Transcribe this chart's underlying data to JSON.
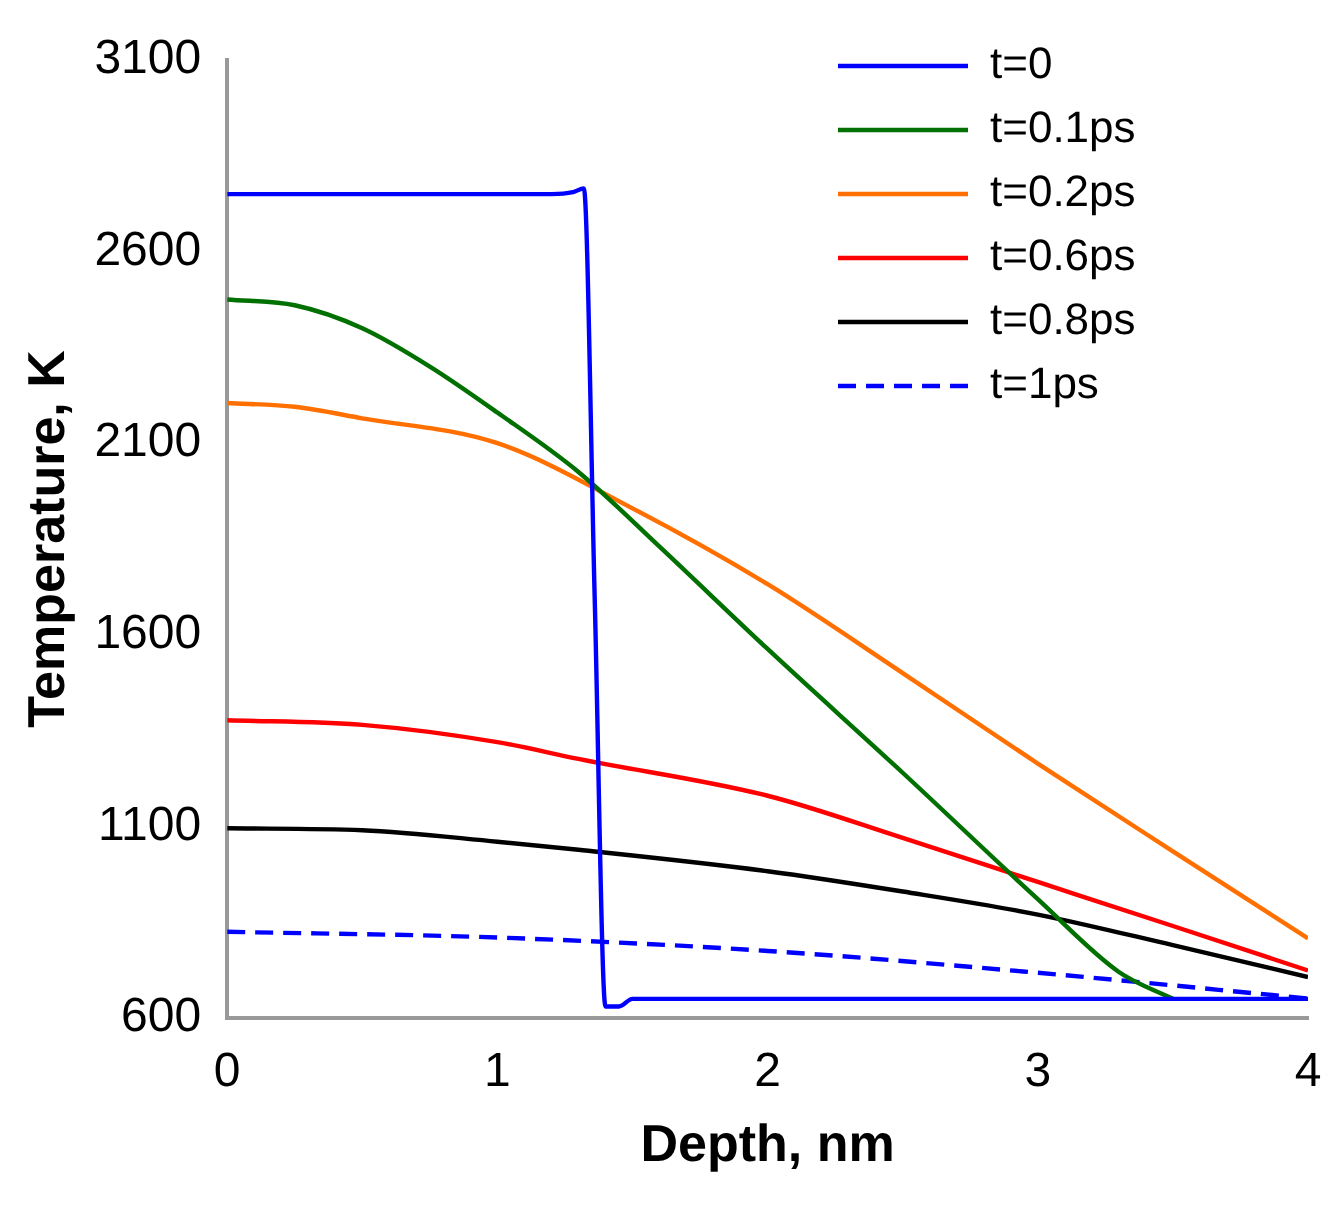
{
  "chart_data": {
    "type": "line",
    "xlabel": "Depth, nm",
    "ylabel": "Temperature, K",
    "xlim": [
      0,
      4
    ],
    "xticks": [
      0,
      1,
      2,
      3,
      4
    ],
    "ylim": [
      600,
      3100
    ],
    "yticks": [
      600,
      1100,
      1600,
      2100,
      2600,
      3100
    ],
    "grid": false,
    "legend": "top right",
    "marker": "none",
    "series": [
      {
        "name": "t=0",
        "color": "#0000ff",
        "x": [
          0,
          0.5,
          1,
          1.2,
          1.28,
          1.32,
          1.36,
          1.4,
          1.45,
          1.5,
          2,
          3,
          4
        ],
        "values": [
          2750,
          2750,
          2750,
          2750,
          2755,
          2765,
          1700,
          630,
          630,
          650,
          650,
          650,
          650
        ]
      },
      {
        "name": "t=0.1ps",
        "color": "#007000",
        "x": [
          0,
          0.25,
          0.5,
          0.75,
          1,
          1.3,
          1.6,
          2,
          2.5,
          3,
          3.3,
          3.5
        ],
        "values": [
          2475,
          2460,
          2400,
          2300,
          2180,
          2025,
          1830,
          1563,
          1240,
          910,
          720,
          650
        ]
      },
      {
        "name": "t=0.2ps",
        "color": "#ff7000",
        "x": [
          0,
          0.25,
          0.5,
          1,
          1.5,
          2,
          2.5,
          3,
          3.5,
          4
        ],
        "values": [
          2205,
          2195,
          2165,
          2100,
          1930,
          1732,
          1500,
          1264,
          1035,
          808
        ]
      },
      {
        "name": "t=0.6ps",
        "color": "#ff0000",
        "x": [
          0,
          0.5,
          1,
          1.3,
          2,
          2.5,
          3,
          3.5,
          4
        ],
        "values": [
          1377,
          1365,
          1320,
          1276,
          1180,
          1070,
          955,
          840,
          724
        ]
      },
      {
        "name": "t=0.8ps",
        "color": "#000000",
        "x": [
          0,
          0.5,
          1,
          1.3,
          2,
          2.5,
          3,
          3.5,
          4
        ],
        "values": [
          1095,
          1090,
          1060,
          1039,
          983,
          930,
          870,
          790,
          707
        ]
      },
      {
        "name": "t=1ps",
        "color": "#0000ff",
        "line_style": "dashed",
        "x": [
          0,
          1,
          2,
          3,
          4
        ],
        "values": [
          825,
          810,
          775,
          718,
          651
        ]
      }
    ]
  }
}
